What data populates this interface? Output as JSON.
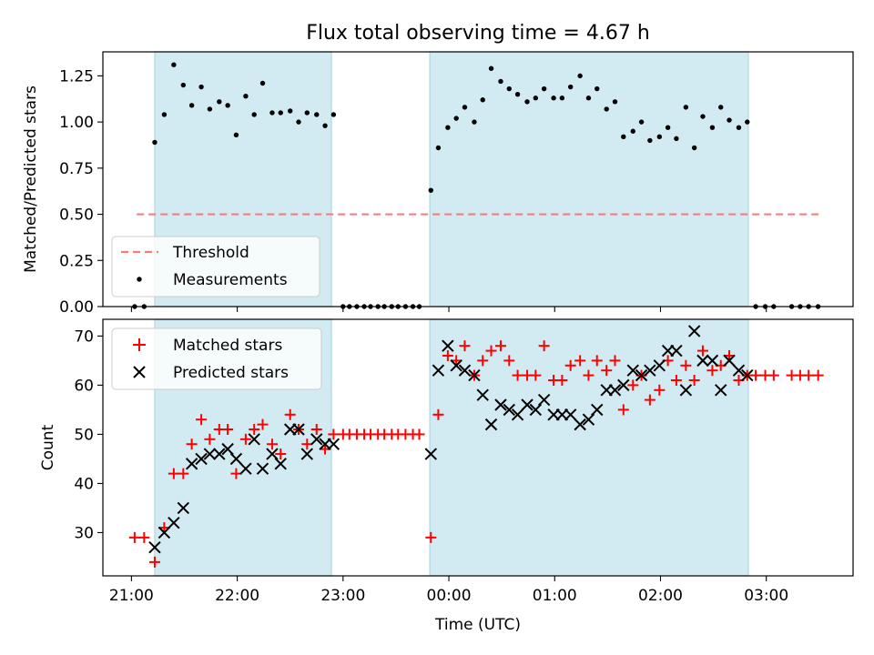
{
  "title": "Flux total observing time = 4.67 h",
  "colors": {
    "matched": "#ff0000",
    "predicted": "#000000",
    "threshold": "#f08080",
    "measurement": "#000000",
    "shade": "#add8e6"
  },
  "chart_data": [
    {
      "type": "scatter",
      "ylabel": "Matched/Predicted stars",
      "ylim": [
        0,
        1.38
      ],
      "yticks": [
        0,
        0.25,
        0.5,
        0.75,
        1.0,
        1.25
      ],
      "ytick_labels": [
        "0.00",
        "0.25",
        "0.50",
        "0.75",
        "1.00",
        "1.25"
      ],
      "x_units": "hours since 21:00 UTC",
      "xlim": [
        -0.27,
        6.82
      ],
      "shaded_intervals": [
        [
          0.22,
          1.89
        ],
        [
          2.82,
          5.83
        ]
      ],
      "legend": {
        "placement": "lower-left",
        "entries": [
          "Threshold",
          "Measurements"
        ]
      },
      "threshold": {
        "name": "Threshold",
        "value": 0.5,
        "x_range": [
          0.05,
          6.5
        ],
        "style": "dashed"
      },
      "series": [
        {
          "name": "Measurements",
          "marker": "dot",
          "x": [
            0.03,
            0.12,
            0.22,
            0.31,
            0.4,
            0.49,
            0.57,
            0.66,
            0.74,
            0.83,
            0.91,
            0.99,
            1.08,
            1.16,
            1.24,
            1.33,
            1.41,
            1.5,
            1.58,
            1.66,
            1.75,
            1.83,
            1.91,
            2.0,
            2.06,
            2.13,
            2.2,
            2.26,
            2.33,
            2.39,
            2.46,
            2.52,
            2.59,
            2.66,
            2.72,
            2.83,
            2.9,
            2.99,
            3.07,
            3.15,
            3.24,
            3.32,
            3.4,
            3.49,
            3.57,
            3.65,
            3.74,
            3.82,
            3.9,
            3.99,
            4.07,
            4.15,
            4.24,
            4.32,
            4.4,
            4.49,
            4.57,
            4.65,
            4.74,
            4.82,
            4.9,
            4.99,
            5.07,
            5.15,
            5.24,
            5.32,
            5.4,
            5.49,
            5.57,
            5.65,
            5.74,
            5.82,
            5.9,
            5.99,
            6.07,
            6.24,
            6.32,
            6.4,
            6.49
          ],
          "y": [
            0.0,
            0.0,
            0.89,
            1.04,
            1.31,
            1.2,
            1.09,
            1.19,
            1.07,
            1.11,
            1.09,
            0.93,
            1.14,
            1.04,
            1.21,
            1.05,
            1.05,
            1.06,
            1.0,
            1.05,
            1.04,
            0.98,
            1.04,
            0.0,
            0.0,
            0.0,
            0.0,
            0.0,
            0.0,
            0.0,
            0.0,
            0.0,
            0.0,
            0.0,
            0.0,
            0.63,
            0.86,
            0.97,
            1.02,
            1.08,
            1.0,
            1.12,
            1.29,
            1.22,
            1.18,
            1.15,
            1.11,
            1.13,
            1.18,
            1.13,
            1.13,
            1.19,
            1.25,
            1.13,
            1.18,
            1.07,
            1.11,
            0.92,
            0.95,
            1.0,
            0.9,
            0.92,
            0.97,
            0.91,
            1.08,
            0.86,
            1.03,
            0.97,
            1.08,
            1.01,
            0.97,
            1.0,
            0.0,
            0.0,
            0.0,
            0.0,
            0.0,
            0.0,
            0.0
          ]
        }
      ]
    },
    {
      "type": "scatter",
      "ylabel": "Count",
      "xlabel": "Time (UTC)",
      "ylim": [
        21.2,
        73.4
      ],
      "yticks": [
        30,
        40,
        50,
        60,
        70
      ],
      "ytick_labels": [
        "30",
        "40",
        "50",
        "60",
        "70"
      ],
      "x_units": "hours since 21:00 UTC",
      "xlim": [
        -0.27,
        6.82
      ],
      "xticks": [
        0,
        1,
        2,
        3,
        4,
        5,
        6
      ],
      "xtick_labels": [
        "21:00",
        "22:00",
        "23:00",
        "00:00",
        "01:00",
        "02:00",
        "03:00"
      ],
      "shaded_intervals": [
        [
          0.22,
          1.89
        ],
        [
          2.82,
          5.83
        ]
      ],
      "legend": {
        "placement": "upper-left",
        "entries": [
          "Matched stars",
          "Predicted stars"
        ]
      },
      "series": [
        {
          "name": "Matched stars",
          "marker": "plus",
          "x": [
            0.03,
            0.12,
            0.22,
            0.31,
            0.4,
            0.49,
            0.57,
            0.66,
            0.74,
            0.83,
            0.91,
            0.99,
            1.08,
            1.16,
            1.24,
            1.33,
            1.41,
            1.5,
            1.58,
            1.66,
            1.75,
            1.83,
            1.91,
            2.0,
            2.06,
            2.13,
            2.2,
            2.26,
            2.33,
            2.39,
            2.46,
            2.52,
            2.59,
            2.66,
            2.72,
            2.83,
            2.9,
            2.99,
            3.07,
            3.15,
            3.24,
            3.32,
            3.4,
            3.49,
            3.57,
            3.65,
            3.74,
            3.82,
            3.9,
            3.99,
            4.07,
            4.15,
            4.24,
            4.32,
            4.4,
            4.49,
            4.57,
            4.65,
            4.74,
            4.82,
            4.9,
            4.99,
            5.07,
            5.15,
            5.24,
            5.32,
            5.4,
            5.49,
            5.57,
            5.65,
            5.74,
            5.82,
            5.9,
            5.99,
            6.07,
            6.24,
            6.32,
            6.4,
            6.49
          ],
          "y": [
            29,
            29,
            24,
            31,
            42,
            42,
            48,
            53,
            49,
            51,
            51,
            42,
            49,
            51,
            52,
            48,
            46,
            54,
            51,
            48,
            51,
            47,
            50,
            50,
            50,
            50,
            50,
            50,
            50,
            50,
            50,
            50,
            50,
            50,
            50,
            29,
            54,
            66,
            65,
            68,
            62,
            65,
            67,
            68,
            65,
            62,
            62,
            62,
            68,
            61,
            61,
            64,
            65,
            62,
            65,
            63,
            65,
            55,
            60,
            62,
            57,
            59,
            65,
            61,
            64,
            61,
            67,
            63,
            64,
            66,
            61,
            62,
            62,
            62,
            62,
            62,
            62,
            62,
            62
          ]
        },
        {
          "name": "Predicted stars",
          "marker": "x",
          "x": [
            0.22,
            0.31,
            0.4,
            0.49,
            0.57,
            0.66,
            0.74,
            0.83,
            0.91,
            0.99,
            1.08,
            1.16,
            1.24,
            1.33,
            1.41,
            1.5,
            1.58,
            1.66,
            1.75,
            1.83,
            1.91,
            2.83,
            2.9,
            2.99,
            3.07,
            3.15,
            3.24,
            3.32,
            3.4,
            3.49,
            3.57,
            3.65,
            3.74,
            3.82,
            3.9,
            3.99,
            4.07,
            4.15,
            4.24,
            4.32,
            4.4,
            4.49,
            4.57,
            4.65,
            4.74,
            4.82,
            4.9,
            4.99,
            5.07,
            5.15,
            5.24,
            5.32,
            5.4,
            5.49,
            5.57,
            5.65,
            5.74,
            5.82
          ],
          "y": [
            27,
            30,
            32,
            35,
            44,
            45,
            46,
            46,
            47,
            45,
            43,
            49,
            43,
            46,
            44,
            51,
            51,
            46,
            49,
            48,
            48,
            46,
            63,
            68,
            64,
            63,
            62,
            58,
            52,
            56,
            55,
            54,
            56,
            55,
            57,
            54,
            54,
            54,
            52,
            53,
            55,
            59,
            59,
            60,
            63,
            62,
            63,
            64,
            67,
            67,
            59,
            71,
            65,
            65,
            59,
            65,
            63,
            62
          ]
        }
      ]
    }
  ]
}
